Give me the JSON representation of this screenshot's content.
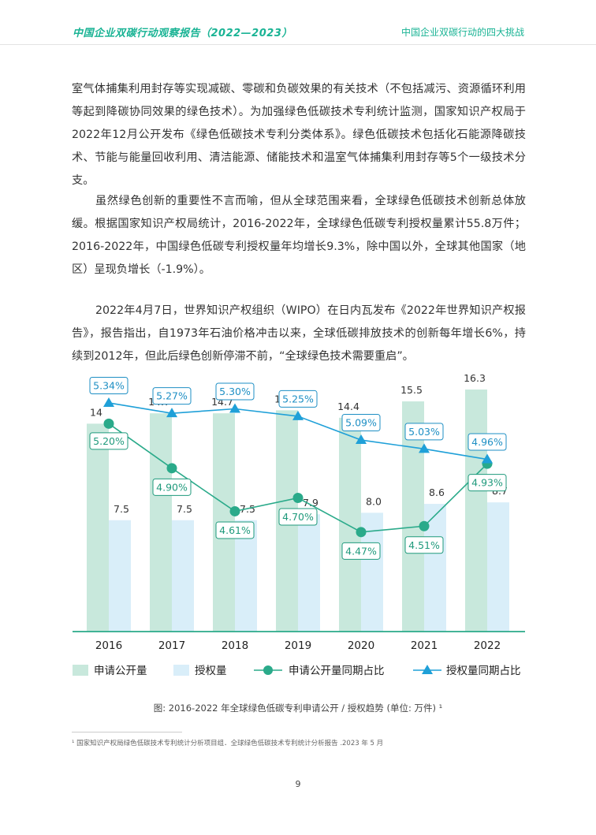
{
  "header": {
    "left_title": "中国企业双碳行动观察报告（2022—2023）",
    "right_title": "中国企业双碳行动的四大挑战"
  },
  "body": {
    "p1": "室气体捕集利用封存等实现减碳、零碳和负碳效果的有关技术（不包括减污、资源循环利用等起到降碳协同效果的绿色技术）。为加强绿色低碳技术专利统计监测，国家知识产权局于2022年12月公开发布《绿色低碳技术专利分类体系》。绿色低碳技术包括化石能源降碳技术、节能与能量回收利用、清洁能源、储能技术和温室气体捕集利用封存等5个一级技术分支。",
    "p2": "虽然绿色创新的重要性不言而喻，但从全球范围来看，全球绿色低碳技术创新总体放缓。根据国家知识产权局统计，2016-2022年，全球绿色低碳专利授权量累计55.8万件；2016-2022年，中国绿色低碳专利授权量年均增长9.3%，除中国以外，全球其他国家（地区）呈现负增长（-1.9%）。",
    "p3": "2022年4月7日，世界知识产权组织（WIPO）在日内瓦发布《2022年世界知识产权报告》，报告指出，自1973年石油价格冲击以来，全球低碳排放技术的创新每年增长6%，持续到2012年，但此后绿色创新停滞不前，“全球绿色技术需要重启”。"
  },
  "chart_data": {
    "type": "bar",
    "categories": [
      "2016",
      "2017",
      "2018",
      "2019",
      "2020",
      "2021",
      "2022"
    ],
    "series": [
      {
        "name": "申请公开量",
        "type": "bar",
        "color": "#c8e8dc",
        "values": [
          14,
          14.7,
          14.7,
          14.9,
          14.4,
          15.5,
          16.3
        ],
        "labels": [
          "14",
          "14.7",
          "14.7",
          "14.9",
          "14.4",
          "15.5",
          "16.3"
        ]
      },
      {
        "name": "授权量",
        "type": "bar",
        "color": "#d9eef9",
        "values": [
          7.5,
          7.5,
          7.5,
          7.9,
          8.0,
          8.6,
          8.7
        ],
        "labels": [
          "7.5",
          "7.5",
          "7.5",
          "7.9",
          "8.0",
          "8.6",
          "8.7"
        ]
      },
      {
        "name": "申请公开量同期占比",
        "type": "line",
        "marker": "circle",
        "color": "#2aaa8a",
        "values": [
          5.2,
          4.9,
          4.61,
          4.7,
          4.47,
          4.51,
          4.93
        ],
        "labels": [
          "5.20%",
          "4.90%",
          "4.61%",
          "4.70%",
          "4.47%",
          "4.51%",
          "4.93%"
        ]
      },
      {
        "name": "授权量同期占比",
        "type": "line",
        "marker": "triangle",
        "color": "#1fa0d8",
        "values": [
          5.34,
          5.27,
          5.3,
          5.25,
          5.09,
          5.03,
          4.96
        ],
        "labels": [
          "5.34%",
          "5.27%",
          "5.30%",
          "5.25%",
          "5.09%",
          "5.03%",
          "4.96%"
        ]
      }
    ],
    "ylim": [
      0,
      18
    ],
    "y2lim": [
      3.8,
      5.6
    ],
    "grid": false,
    "legend_position": "bottom"
  },
  "caption": "图: 2016-2022 年全球绿色低碳专利申请公开 / 授权趋势 (单位: 万件) ¹",
  "footnote": "¹ 国家知识产权局绿色低碳技术专利统计分析项目组．全球绿色低碳技术专利统计分析报告 .2023 年 5 月",
  "page_number": "9"
}
